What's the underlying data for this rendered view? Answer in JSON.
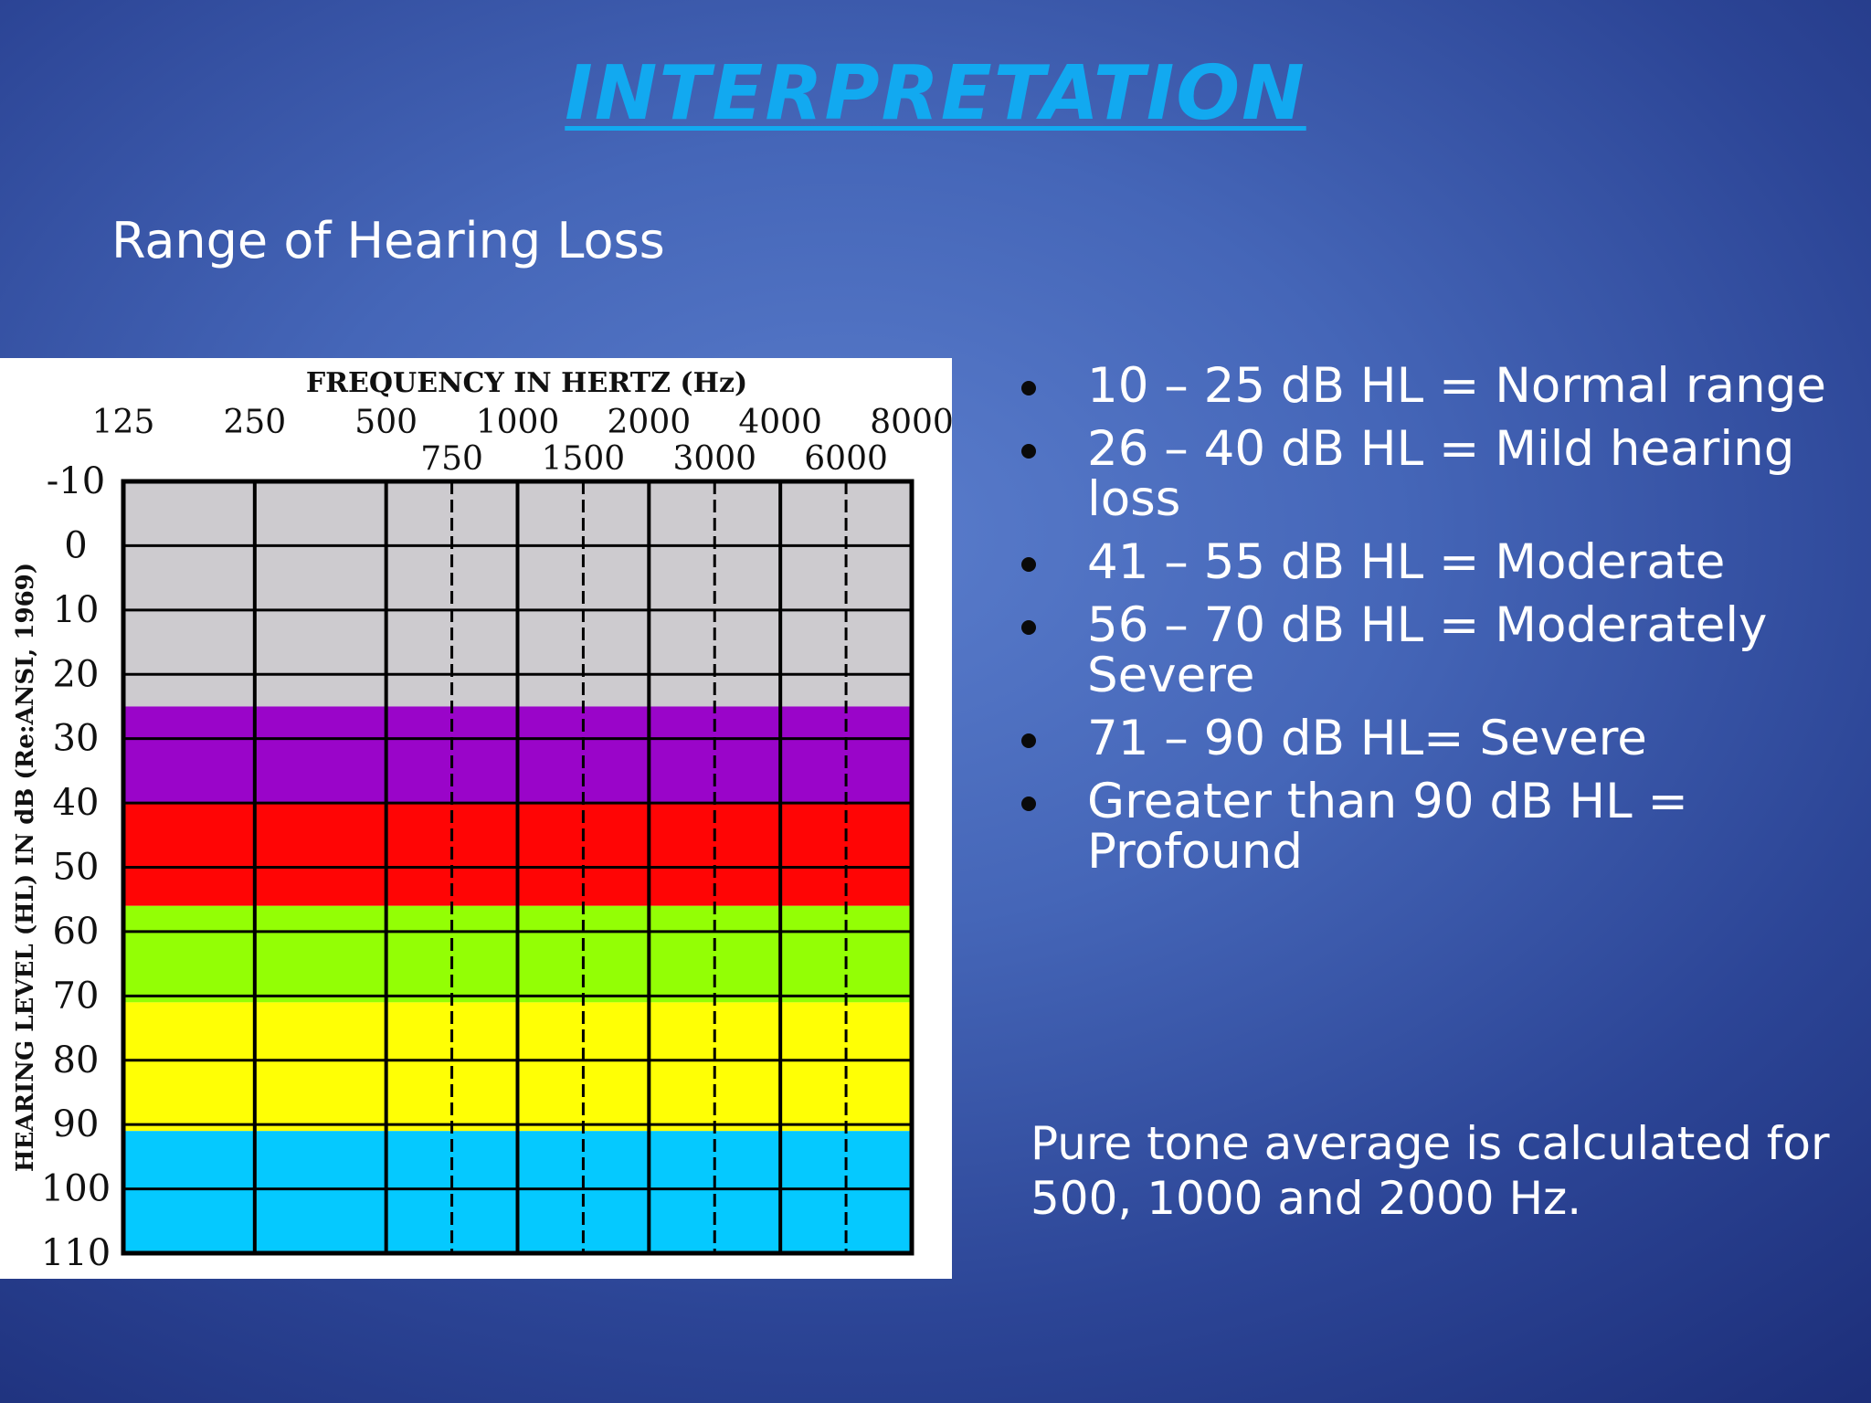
{
  "slide": {
    "title": "INTERPRETATION",
    "subtitle": "Range of Hearing Loss"
  },
  "bullets": [
    "10 – 25 dB HL = Normal range",
    "26 – 40 dB HL = Mild hearing loss",
    "41 –  55 dB HL = Moderate",
    "56 – 70 dB HL = Moderately Severe",
    "71 – 90 dB HL= Severe",
    "Greater than 90 dB HL = Profound"
  ],
  "note": "Pure tone average is calculated for 500, 1000 and 2000 Hz.",
  "chart_data": {
    "type": "heatmap",
    "title": "FREQUENCY IN HERTZ (Hz)",
    "ylabel": "HEARING LEVEL (HL) IN dB (Re:ANSI, 1969)",
    "x_ticks_top": [
      "125",
      "250",
      "500",
      "1000",
      "2000",
      "4000",
      "8000"
    ],
    "x_ticks_mid": [
      "750",
      "1500",
      "3000",
      "6000"
    ],
    "y_ticks": [
      "-10",
      "0",
      "10",
      "20",
      "30",
      "40",
      "50",
      "60",
      "70",
      "80",
      "90",
      "100",
      "110"
    ],
    "ylim": [
      -10,
      110
    ],
    "y_inverted": true,
    "grid": true,
    "bands": [
      {
        "from": -10,
        "to": 25,
        "color": "#cdcbcf"
      },
      {
        "from": 25,
        "to": 40,
        "color": "#9a05c9"
      },
      {
        "from": 40,
        "to": 56,
        "color": "#ff0505"
      },
      {
        "from": 56,
        "to": 71,
        "color": "#93ff05"
      },
      {
        "from": 71,
        "to": 91,
        "color": "#ffff05"
      },
      {
        "from": 91,
        "to": 110,
        "color": "#05c9ff"
      }
    ]
  }
}
